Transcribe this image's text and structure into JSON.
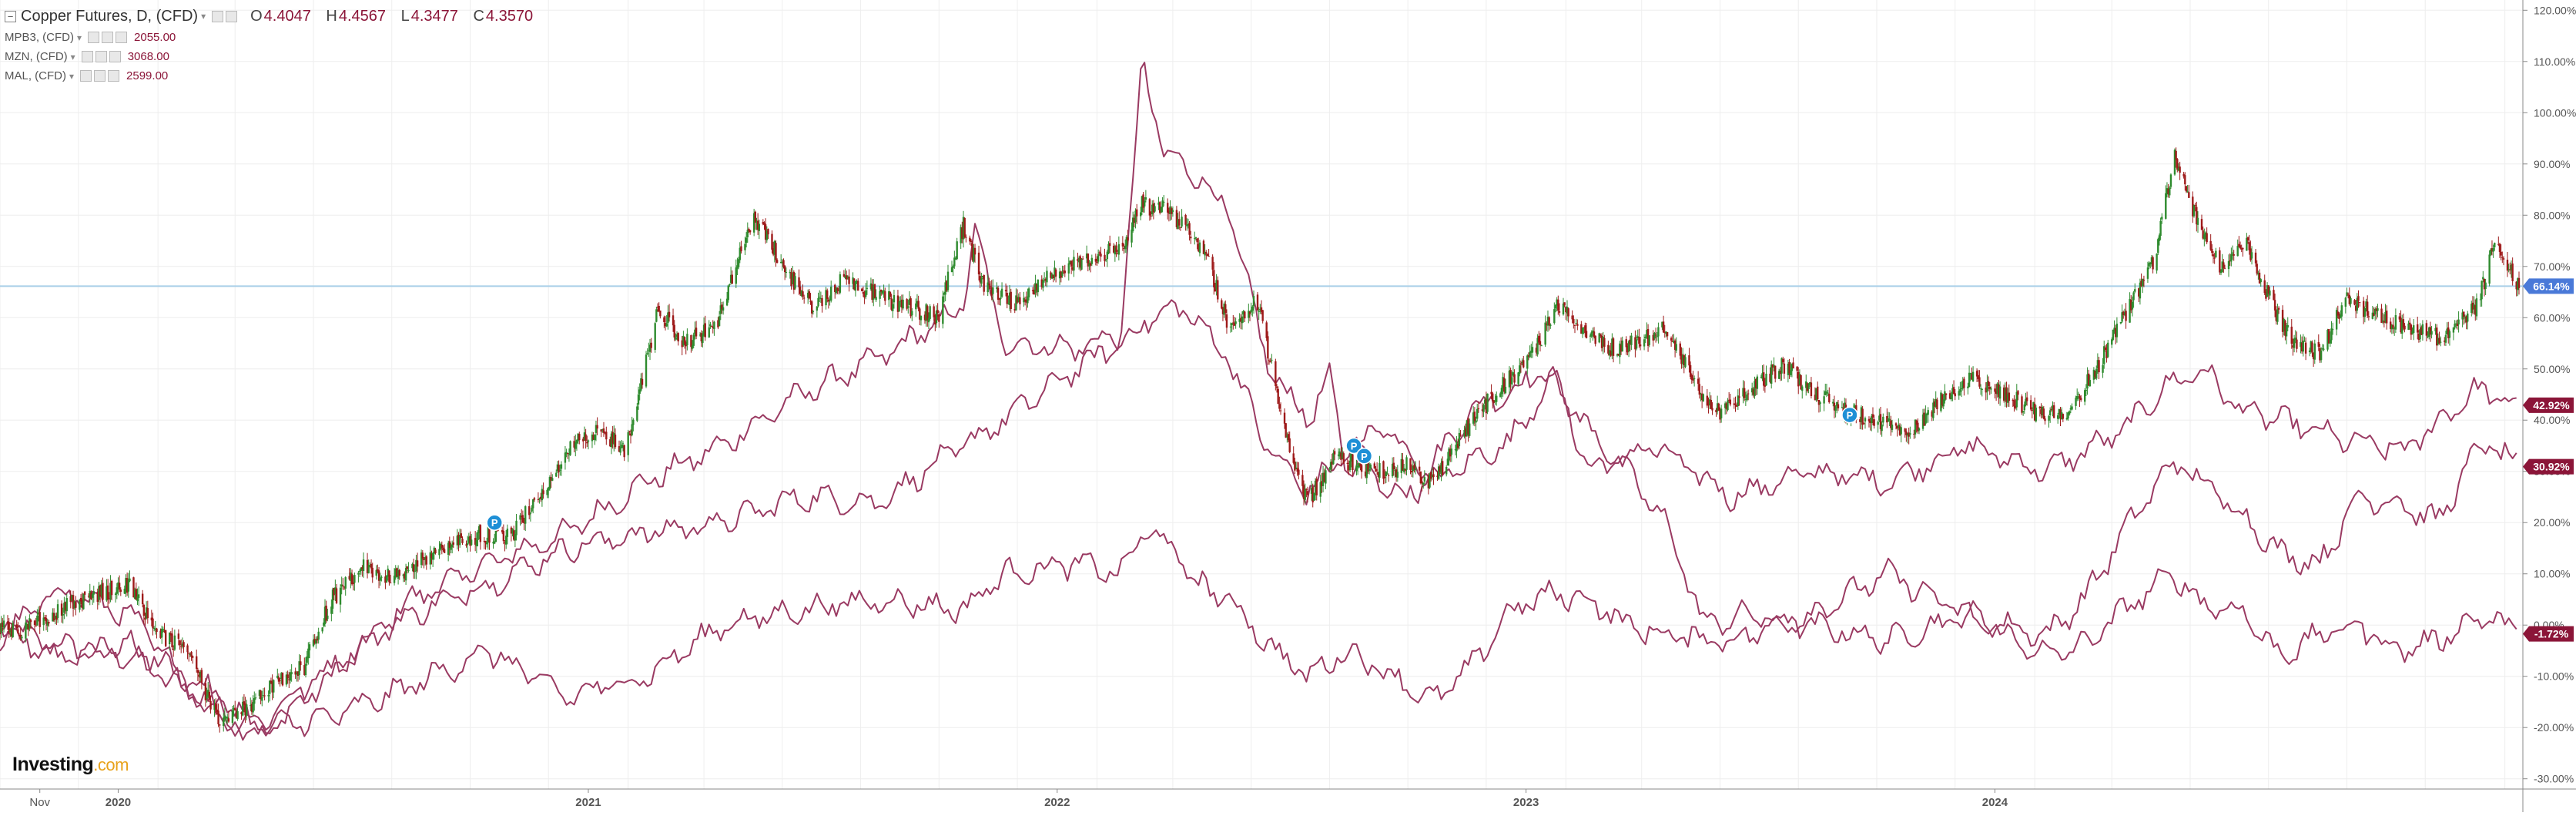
{
  "legend": {
    "title": "Copper Futures, D, (CFD)",
    "ohlc": [
      {
        "label": "O",
        "value": "4.4047"
      },
      {
        "label": "H",
        "value": "4.4567"
      },
      {
        "label": "L",
        "value": "4.3477"
      },
      {
        "label": "C",
        "value": "4.3570"
      }
    ],
    "comparisons": [
      {
        "name": "MPB3, (CFD)",
        "value": "2055.00"
      },
      {
        "name": "MZN, (CFD)",
        "value": "3068.00"
      },
      {
        "name": "MAL, (CFD)",
        "value": "2599.00"
      }
    ]
  },
  "logo": {
    "text": "Investing",
    "suffix": ".com"
  },
  "colors": {
    "up": "#2e8b2e",
    "down": "#9e1a1a",
    "compare": "#9a3a62",
    "ref_line": "#a9cfe8",
    "badge_main": "#4a79d8",
    "badge_compare": "#8b1538",
    "grid": "#eeeeee",
    "axis_text": "#555555"
  },
  "chart_data": {
    "type": "line",
    "title": "Copper Futures, D, (CFD)",
    "scale": "percent",
    "ylim": [
      -32,
      122
    ],
    "yticks": [
      "120.00%",
      "110.00%",
      "100.00%",
      "90.00%",
      "80.00%",
      "70.00%",
      "60.00%",
      "50.00%",
      "40.00%",
      "30.00%",
      "20.00%",
      "10.00%",
      "0.00%",
      "-10.00%",
      "-20.00%",
      "-30.00%"
    ],
    "ytick_values": [
      120,
      110,
      100,
      90,
      80,
      70,
      60,
      50,
      40,
      30,
      20,
      10,
      0,
      -10,
      -20,
      -30
    ],
    "xlim": [
      "2019-10-01",
      "2025-02-15"
    ],
    "xticks": [
      "Nov",
      "2020",
      "2021",
      "2022",
      "2023",
      "2024"
    ],
    "xtick_dates": [
      "2019-11-01",
      "2020-01-01",
      "2021-01-01",
      "2022-01-01",
      "2023-01-01",
      "2024-01-01"
    ],
    "grid": true,
    "reference_line": 66.14,
    "last_value_badges": [
      {
        "label": "66.14%",
        "value": 66.14,
        "series": "Copper Futures, D, (CFD)"
      },
      {
        "label": "42.92%",
        "value": 42.92,
        "series": "MPB3, (CFD)"
      },
      {
        "label": "30.92%",
        "value": 30.92,
        "series": "MZN, (CFD)"
      },
      {
        "label": "-1.72%",
        "value": -1.72,
        "series": "MAL, (CFD)"
      }
    ],
    "markers": [
      {
        "date": "2020-10-20",
        "value": 20,
        "label": "P"
      },
      {
        "date": "2022-08-20",
        "value": 35,
        "label": "P"
      },
      {
        "date": "2022-08-28",
        "value": 33,
        "label": "P"
      },
      {
        "date": "2023-09-10",
        "value": 41,
        "label": "P"
      }
    ],
    "series": [
      {
        "name": "Copper Futures, D, (CFD)",
        "style": "candlestick",
        "points": [
          [
            "2019-10-01",
            0
          ],
          [
            "2019-10-20",
            -1
          ],
          [
            "2019-11-15",
            3
          ],
          [
            "2019-12-15",
            6
          ],
          [
            "2020-01-10",
            8
          ],
          [
            "2020-02-01",
            -2
          ],
          [
            "2020-02-25",
            -5
          ],
          [
            "2020-03-20",
            -20
          ],
          [
            "2020-04-10",
            -16
          ],
          [
            "2020-05-01",
            -12
          ],
          [
            "2020-05-25",
            -8
          ],
          [
            "2020-06-15",
            5
          ],
          [
            "2020-07-10",
            11
          ],
          [
            "2020-08-01",
            9
          ],
          [
            "2020-08-25",
            13
          ],
          [
            "2020-09-15",
            15
          ],
          [
            "2020-10-10",
            18
          ],
          [
            "2020-11-01",
            17
          ],
          [
            "2020-11-25",
            26
          ],
          [
            "2020-12-20",
            35
          ],
          [
            "2021-01-10",
            38
          ],
          [
            "2021-01-30",
            34
          ],
          [
            "2021-02-25",
            62
          ],
          [
            "2021-03-15",
            55
          ],
          [
            "2021-04-10",
            58
          ],
          [
            "2021-05-10",
            80
          ],
          [
            "2021-06-10",
            67
          ],
          [
            "2021-06-25",
            62
          ],
          [
            "2021-07-20",
            68
          ],
          [
            "2021-08-15",
            64
          ],
          [
            "2021-09-10",
            62
          ],
          [
            "2021-09-30",
            60
          ],
          [
            "2021-10-20",
            78
          ],
          [
            "2021-11-05",
            66
          ],
          [
            "2021-11-30",
            63
          ],
          [
            "2021-12-25",
            68
          ],
          [
            "2022-01-20",
            71
          ],
          [
            "2022-02-20",
            74
          ],
          [
            "2022-03-08",
            82
          ],
          [
            "2022-03-25",
            81
          ],
          [
            "2022-04-10",
            78
          ],
          [
            "2022-04-30",
            70
          ],
          [
            "2022-05-15",
            58
          ],
          [
            "2022-06-05",
            64
          ],
          [
            "2022-06-30",
            35
          ],
          [
            "2022-07-15",
            24
          ],
          [
            "2022-08-05",
            33
          ],
          [
            "2022-09-05",
            30
          ],
          [
            "2022-09-30",
            31
          ],
          [
            "2022-10-20",
            28
          ],
          [
            "2022-11-15",
            38
          ],
          [
            "2022-12-10",
            46
          ],
          [
            "2023-01-05",
            52
          ],
          [
            "2023-01-25",
            62
          ],
          [
            "2023-02-15",
            58
          ],
          [
            "2023-03-10",
            54
          ],
          [
            "2023-04-05",
            56
          ],
          [
            "2023-04-20",
            58
          ],
          [
            "2023-05-15",
            46
          ],
          [
            "2023-06-01",
            41
          ],
          [
            "2023-06-25",
            46
          ],
          [
            "2023-07-20",
            51
          ],
          [
            "2023-08-15",
            45
          ],
          [
            "2023-09-05",
            42
          ],
          [
            "2023-10-01",
            40
          ],
          [
            "2023-10-25",
            37
          ],
          [
            "2023-11-20",
            44
          ],
          [
            "2023-12-15",
            48
          ],
          [
            "2024-01-10",
            45
          ],
          [
            "2024-02-05",
            41
          ],
          [
            "2024-02-28",
            42
          ],
          [
            "2024-03-20",
            50
          ],
          [
            "2024-04-10",
            60
          ],
          [
            "2024-05-05",
            72
          ],
          [
            "2024-05-20",
            92
          ],
          [
            "2024-06-05",
            80
          ],
          [
            "2024-06-25",
            70
          ],
          [
            "2024-07-15",
            74
          ],
          [
            "2024-08-05",
            62
          ],
          [
            "2024-08-20",
            55
          ],
          [
            "2024-09-10",
            53
          ],
          [
            "2024-10-01",
            64
          ],
          [
            "2024-10-20",
            61
          ],
          [
            "2024-11-15",
            58
          ],
          [
            "2024-12-15",
            56
          ],
          [
            "2025-01-10",
            62
          ],
          [
            "2025-01-25",
            75
          ],
          [
            "2025-02-05",
            70
          ],
          [
            "2025-02-12",
            66.14
          ]
        ]
      },
      {
        "name": "MPB3, (CFD)",
        "style": "line",
        "points": [
          [
            "2019-10-01",
            0
          ],
          [
            "2019-11-15",
            -4
          ],
          [
            "2020-01-10",
            -6
          ],
          [
            "2020-03-20",
            -17
          ],
          [
            "2020-04-20",
            -22
          ],
          [
            "2020-06-15",
            -10
          ],
          [
            "2020-08-15",
            5
          ],
          [
            "2020-10-15",
            12
          ],
          [
            "2020-12-15",
            18
          ],
          [
            "2021-02-15",
            28
          ],
          [
            "2021-04-15",
            35
          ],
          [
            "2021-06-15",
            45
          ],
          [
            "2021-08-15",
            52
          ],
          [
            "2021-10-20",
            62
          ],
          [
            "2021-10-28",
            78
          ],
          [
            "2021-11-20",
            55
          ],
          [
            "2022-01-15",
            54
          ],
          [
            "2022-02-20",
            57
          ],
          [
            "2022-03-08",
            110
          ],
          [
            "2022-03-25",
            92
          ],
          [
            "2022-04-20",
            88
          ],
          [
            "2022-05-15",
            80
          ],
          [
            "2022-06-15",
            50
          ],
          [
            "2022-07-15",
            40
          ],
          [
            "2022-08-01",
            48
          ],
          [
            "2022-08-15",
            30
          ],
          [
            "2022-09-10",
            40
          ],
          [
            "2022-10-15",
            30
          ],
          [
            "2022-11-20",
            42
          ],
          [
            "2022-12-15",
            45
          ],
          [
            "2023-01-20",
            50
          ],
          [
            "2023-02-20",
            30
          ],
          [
            "2023-04-10",
            35
          ],
          [
            "2023-06-10",
            25
          ],
          [
            "2023-08-10",
            30
          ],
          [
            "2023-10-10",
            28
          ],
          [
            "2023-12-10",
            35
          ],
          [
            "2024-02-10",
            30
          ],
          [
            "2024-04-10",
            38
          ],
          [
            "2024-05-10",
            46
          ],
          [
            "2024-06-10",
            50
          ],
          [
            "2024-07-10",
            42
          ],
          [
            "2024-08-10",
            40
          ],
          [
            "2024-10-01",
            36
          ],
          [
            "2024-11-15",
            34
          ],
          [
            "2025-01-10",
            46
          ],
          [
            "2025-01-30",
            44
          ],
          [
            "2025-02-12",
            42.92
          ]
        ]
      },
      {
        "name": "MZN, (CFD)",
        "style": "line",
        "points": [
          [
            "2019-10-01",
            -3
          ],
          [
            "2019-11-15",
            7
          ],
          [
            "2020-01-10",
            2
          ],
          [
            "2020-03-20",
            -18
          ],
          [
            "2020-04-20",
            -19
          ],
          [
            "2020-06-15",
            -8
          ],
          [
            "2020-08-15",
            2
          ],
          [
            "2020-10-15",
            8
          ],
          [
            "2020-12-15",
            15
          ],
          [
            "2021-02-15",
            18
          ],
          [
            "2021-04-15",
            20
          ],
          [
            "2021-06-15",
            25
          ],
          [
            "2021-08-15",
            24
          ],
          [
            "2021-10-20",
            35
          ],
          [
            "2021-11-20",
            40
          ],
          [
            "2022-01-15",
            50
          ],
          [
            "2022-02-20",
            55
          ],
          [
            "2022-03-15",
            60
          ],
          [
            "2022-04-10",
            62
          ],
          [
            "2022-05-15",
            52
          ],
          [
            "2022-06-15",
            34
          ],
          [
            "2022-07-15",
            26
          ],
          [
            "2022-08-20",
            35
          ],
          [
            "2022-09-20",
            25
          ],
          [
            "2022-10-20",
            28
          ],
          [
            "2022-11-20",
            32
          ],
          [
            "2022-12-20",
            36
          ],
          [
            "2023-01-20",
            48
          ],
          [
            "2023-02-20",
            38
          ],
          [
            "2023-03-20",
            30
          ],
          [
            "2023-04-20",
            20
          ],
          [
            "2023-05-20",
            0
          ],
          [
            "2023-06-20",
            2
          ],
          [
            "2023-08-10",
            0
          ],
          [
            "2023-10-10",
            -3
          ],
          [
            "2023-12-10",
            2
          ],
          [
            "2024-01-10",
            0
          ],
          [
            "2024-02-10",
            -2
          ],
          [
            "2024-03-10",
            5
          ],
          [
            "2024-04-20",
            22
          ],
          [
            "2024-05-20",
            32
          ],
          [
            "2024-06-10",
            28
          ],
          [
            "2024-07-10",
            22
          ],
          [
            "2024-08-10",
            14
          ],
          [
            "2024-09-10",
            12
          ],
          [
            "2024-10-10",
            25
          ],
          [
            "2024-11-10",
            24
          ],
          [
            "2024-12-10",
            20
          ],
          [
            "2025-01-15",
            36
          ],
          [
            "2025-02-12",
            30.92
          ]
        ]
      },
      {
        "name": "MAL, (CFD)",
        "style": "line",
        "points": [
          [
            "2019-10-01",
            -1
          ],
          [
            "2019-11-15",
            -6
          ],
          [
            "2020-01-10",
            -4
          ],
          [
            "2020-03-20",
            -14
          ],
          [
            "2020-04-20",
            -20
          ],
          [
            "2020-06-15",
            -18
          ],
          [
            "2020-08-15",
            -12
          ],
          [
            "2020-10-15",
            -5
          ],
          [
            "2020-12-15",
            -14
          ],
          [
            "2021-02-15",
            -10
          ],
          [
            "2021-04-15",
            0
          ],
          [
            "2021-06-15",
            3
          ],
          [
            "2021-08-15",
            5
          ],
          [
            "2021-10-20",
            3
          ],
          [
            "2021-11-20",
            10
          ],
          [
            "2022-01-15",
            12
          ],
          [
            "2022-02-20",
            10
          ],
          [
            "2022-03-08",
            18
          ],
          [
            "2022-03-25",
            17
          ],
          [
            "2022-04-20",
            8
          ],
          [
            "2022-05-15",
            5
          ],
          [
            "2022-06-15",
            -4
          ],
          [
            "2022-07-15",
            -10
          ],
          [
            "2022-08-15",
            -5
          ],
          [
            "2022-09-20",
            -10
          ],
          [
            "2022-10-20",
            -15
          ],
          [
            "2022-11-20",
            -8
          ],
          [
            "2022-12-20",
            3
          ],
          [
            "2023-01-20",
            6
          ],
          [
            "2023-02-20",
            5
          ],
          [
            "2023-03-20",
            0
          ],
          [
            "2023-04-20",
            -2
          ],
          [
            "2023-06-10",
            -3
          ],
          [
            "2023-08-10",
            2
          ],
          [
            "2023-10-10",
            10
          ],
          [
            "2023-12-10",
            2
          ],
          [
            "2024-01-10",
            -2
          ],
          [
            "2024-02-10",
            -6
          ],
          [
            "2024-03-10",
            -4
          ],
          [
            "2024-04-20",
            5
          ],
          [
            "2024-05-20",
            10
          ],
          [
            "2024-06-10",
            4
          ],
          [
            "2024-07-10",
            3
          ],
          [
            "2024-08-10",
            -6
          ],
          [
            "2024-09-10",
            -2
          ],
          [
            "2024-10-10",
            0
          ],
          [
            "2024-11-10",
            -5
          ],
          [
            "2024-12-10",
            -3
          ],
          [
            "2025-01-15",
            2
          ],
          [
            "2025-02-12",
            -1.72
          ]
        ]
      }
    ]
  }
}
